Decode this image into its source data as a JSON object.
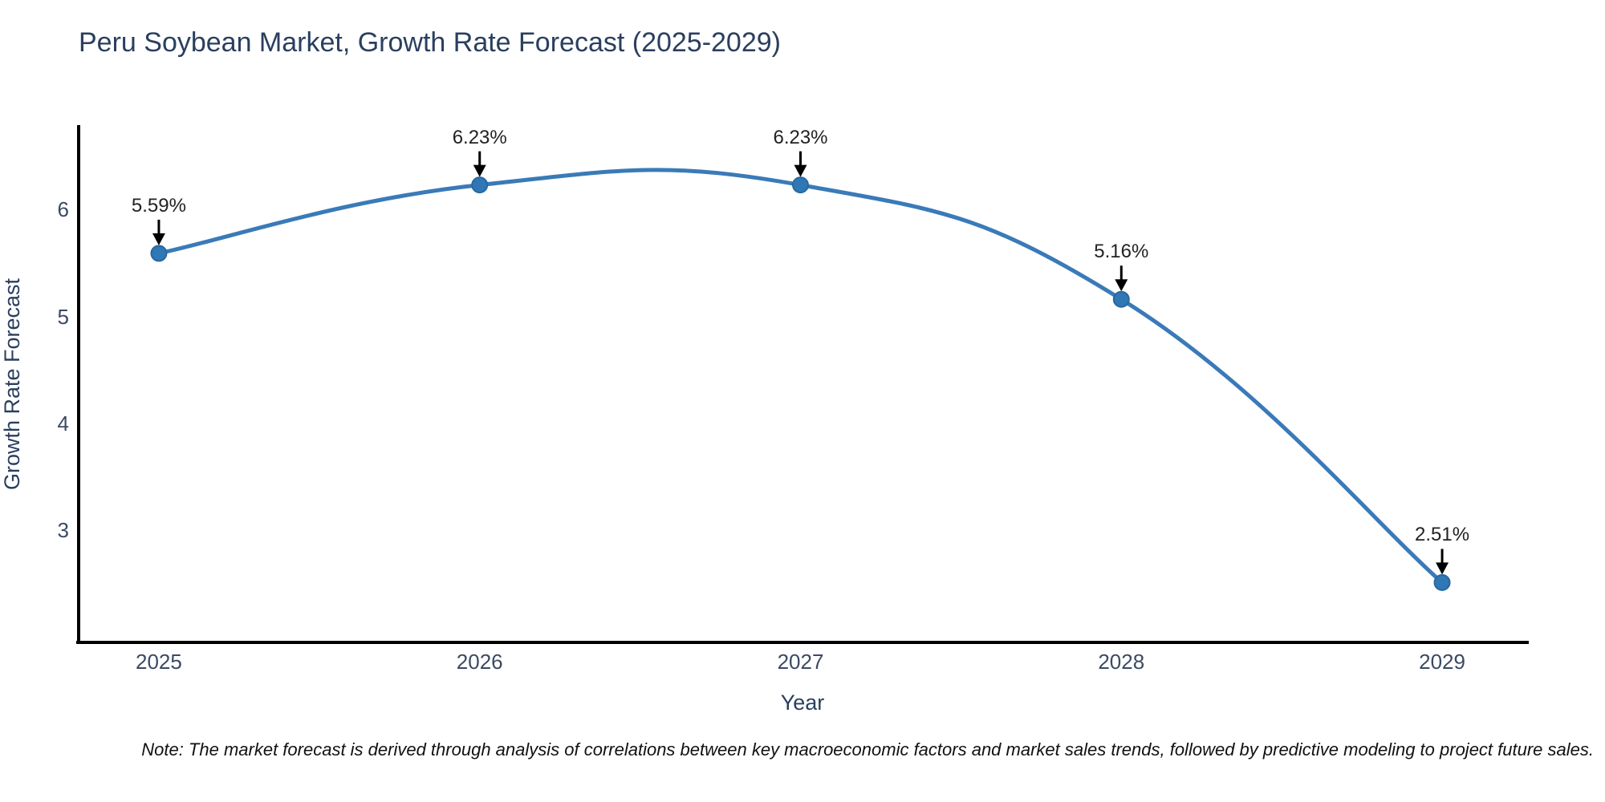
{
  "chart_data": {
    "type": "line",
    "title": "Peru Soybean Market, Growth Rate Forecast (2025-2029)",
    "xlabel": "Year",
    "ylabel": "Growth Rate Forecast",
    "x": [
      2025,
      2026,
      2027,
      2028,
      2029
    ],
    "values": [
      5.59,
      6.23,
      6.23,
      5.16,
      2.51
    ],
    "point_labels": [
      "5.59%",
      "6.23%",
      "6.23%",
      "5.16%",
      "2.51%"
    ],
    "yticks": [
      3,
      4,
      5,
      6
    ],
    "xlim": [
      2024.75,
      2029.27
    ],
    "ylim": [
      1.95,
      6.79
    ],
    "grid": false,
    "legend_position": "none",
    "line_shape": "spline",
    "annotation_style": "value label above point with black down arrow",
    "colors": {
      "line": "#3a7ab8",
      "marker_fill": "#3077b6",
      "marker_edge": "#27689f",
      "arrow": "#000000",
      "axis": "#000000",
      "title_text": "#2a3f5f",
      "tick_text": "#3b4a63",
      "annotation_text": "#222222"
    }
  },
  "note": {
    "text": "Note: The market forecast is derived through analysis of correlations between key macroeconomic factors and market sales trends, followed by predictive modeling to project future sales."
  }
}
